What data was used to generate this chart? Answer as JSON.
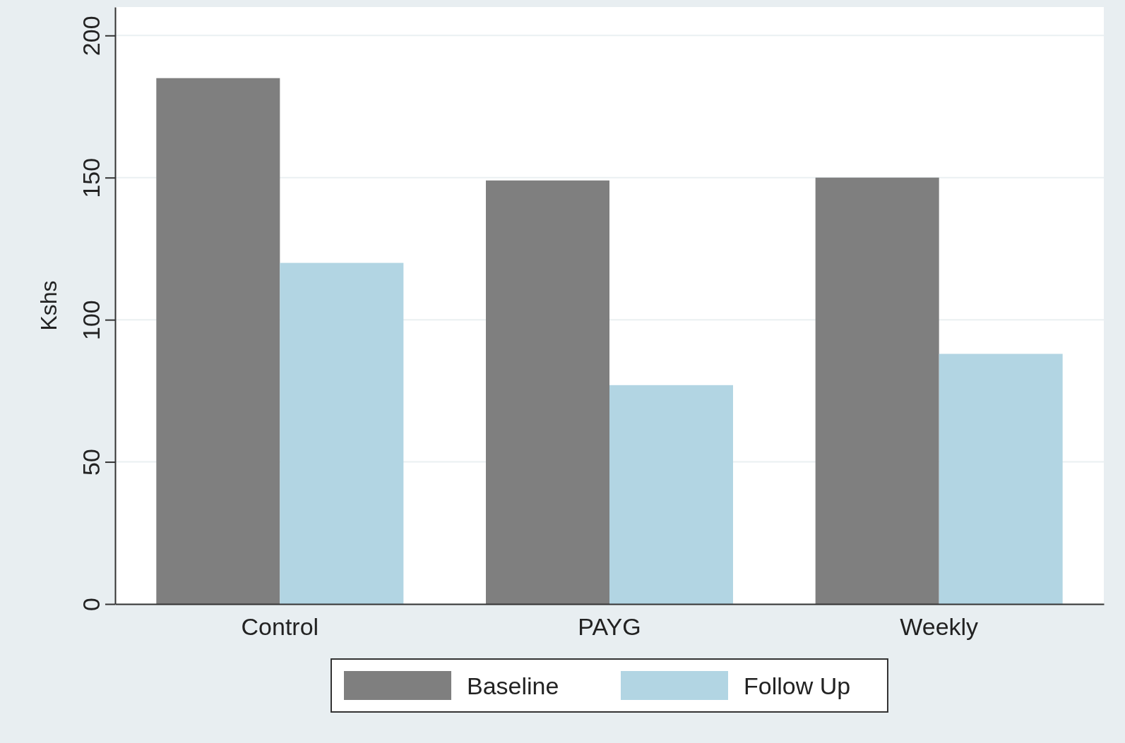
{
  "chart_data": {
    "type": "bar",
    "ylabel": "Kshs",
    "categories": [
      "Control",
      "PAYG",
      "Weekly"
    ],
    "series": [
      {
        "name": "Baseline",
        "color": "#7f7f7f",
        "values": [
          185,
          149,
          150
        ]
      },
      {
        "name": "Follow Up",
        "color": "#b2d5e3",
        "values": [
          120,
          77,
          88
        ]
      }
    ],
    "ylim": [
      0,
      210
    ],
    "yticks": [
      0,
      50,
      100,
      150,
      200
    ],
    "grid": "y",
    "legend": "bottom"
  }
}
